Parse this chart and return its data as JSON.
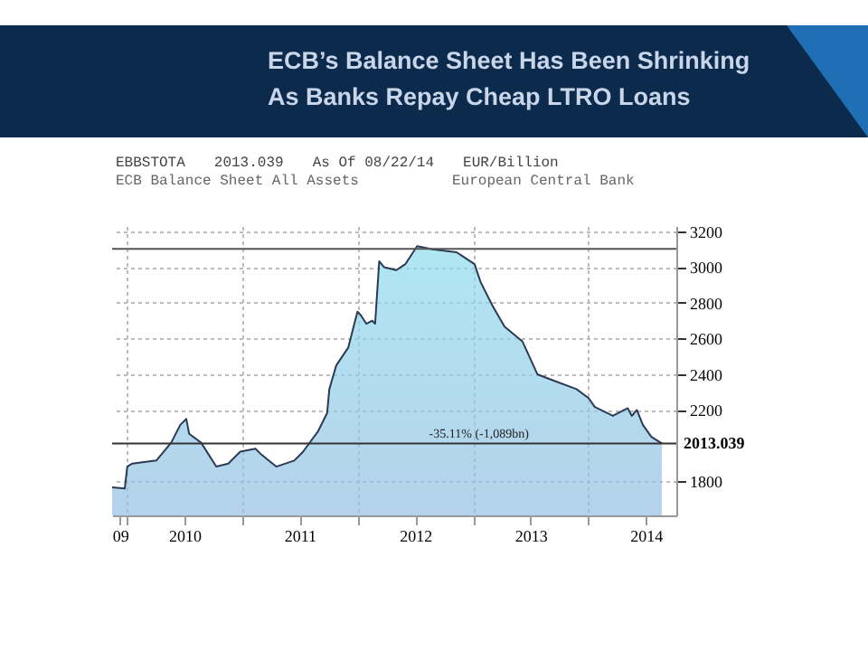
{
  "chart_data": {
    "type": "area",
    "title": "ECB’s Balance Sheet Has Been Shrinking As Banks Repay Cheap LTRO Loans",
    "subtitle": "ECB Balance Sheet All Assets",
    "annotations": [
      "EBBSTOTA",
      "2013.039",
      "As Of 08/22/14",
      "EUR/Billion",
      "European Central Bank",
      {
        "text": "-35.11% (-1,089bn)",
        "x": "2013-01-20",
        "y": 2013.039
      }
    ],
    "x": [
      "2009-11-15",
      "2009-12-25",
      "2010-01-02",
      "2010-01-18",
      "2010-04-04",
      "2010-05-21",
      "2010-06-19",
      "2010-07-08",
      "2010-07-17",
      "2010-08-24",
      "2010-10-11",
      "2010-11-18",
      "2010-12-26",
      "2011-02-12",
      "2011-03-03",
      "2011-04-19",
      "2011-06-15",
      "2011-07-13",
      "2011-08-30",
      "2011-09-27",
      "2011-10-04",
      "2011-10-26",
      "2011-12-03",
      "2012-01-01",
      "2012-01-11",
      "2012-01-29",
      "2012-02-17",
      "2012-02-26",
      "2012-03-10",
      "2012-03-25",
      "2012-05-03",
      "2012-06-01",
      "2012-07-08",
      "2012-08-26",
      "2012-11-10",
      "2013-01-06",
      "2013-01-25",
      "2013-03-04",
      "2013-04-11",
      "2013-06-07",
      "2013-07-24",
      "2013-09-10",
      "2013-11-25",
      "2014-01-02",
      "2014-01-22",
      "2014-03-20",
      "2014-05-06",
      "2014-05-19",
      "2014-06-04",
      "2014-06-23",
      "2014-07-20",
      "2014-08-22"
    ],
    "series": [
      {
        "color": "#8fdcee",
        "values": [
          1767,
          1760,
          1883,
          1900,
          1917,
          2017,
          2117,
          2150,
          2067,
          2017,
          1883,
          1900,
          1967,
          1983,
          1950,
          1883,
          1917,
          1967,
          2083,
          2183,
          2317,
          2450,
          2550,
          2750,
          2733,
          2683,
          2700,
          2683,
          3033,
          3000,
          2983,
          3017,
          3117,
          3100,
          3083,
          3017,
          2917,
          2783,
          2667,
          2583,
          2400,
          2367,
          2317,
          2267,
          2217,
          2167,
          2210,
          2167,
          2200,
          2117,
          2050,
          2013.039
        ]
      }
    ],
    "xlim": [
      "2009-11-15",
      "2014-10-07"
    ],
    "xticks": [
      {
        "value": "2009-12-10",
        "label": "09"
      },
      {
        "value": "2010-01-01",
        "label": null
      },
      {
        "value": "2010-07-02",
        "label": "2010"
      },
      {
        "value": "2011-01-01",
        "label": null
      },
      {
        "value": "2011-07-02",
        "label": "2011"
      },
      {
        "value": "2012-01-01",
        "label": null
      },
      {
        "value": "2012-07-02",
        "label": "2012"
      },
      {
        "value": "2013-01-01",
        "label": null
      },
      {
        "value": "2013-07-02",
        "label": "2013"
      },
      {
        "value": "2014-01-01",
        "label": null
      },
      {
        "value": "2014-07-02",
        "label": "2014"
      }
    ],
    "ylim": [
      1610,
      3230
    ],
    "yticks": [
      1800,
      2200,
      2400,
      2600,
      2800,
      3000,
      3200
    ],
    "ref_lines": [
      {
        "axis": "y",
        "value": 3102,
        "color": "#555555"
      },
      {
        "axis": "y",
        "value": 2013.039,
        "label": "2013.039",
        "color": "#333333"
      }
    ],
    "grid": true,
    "marker": "none",
    "line_style": "solid"
  }
}
